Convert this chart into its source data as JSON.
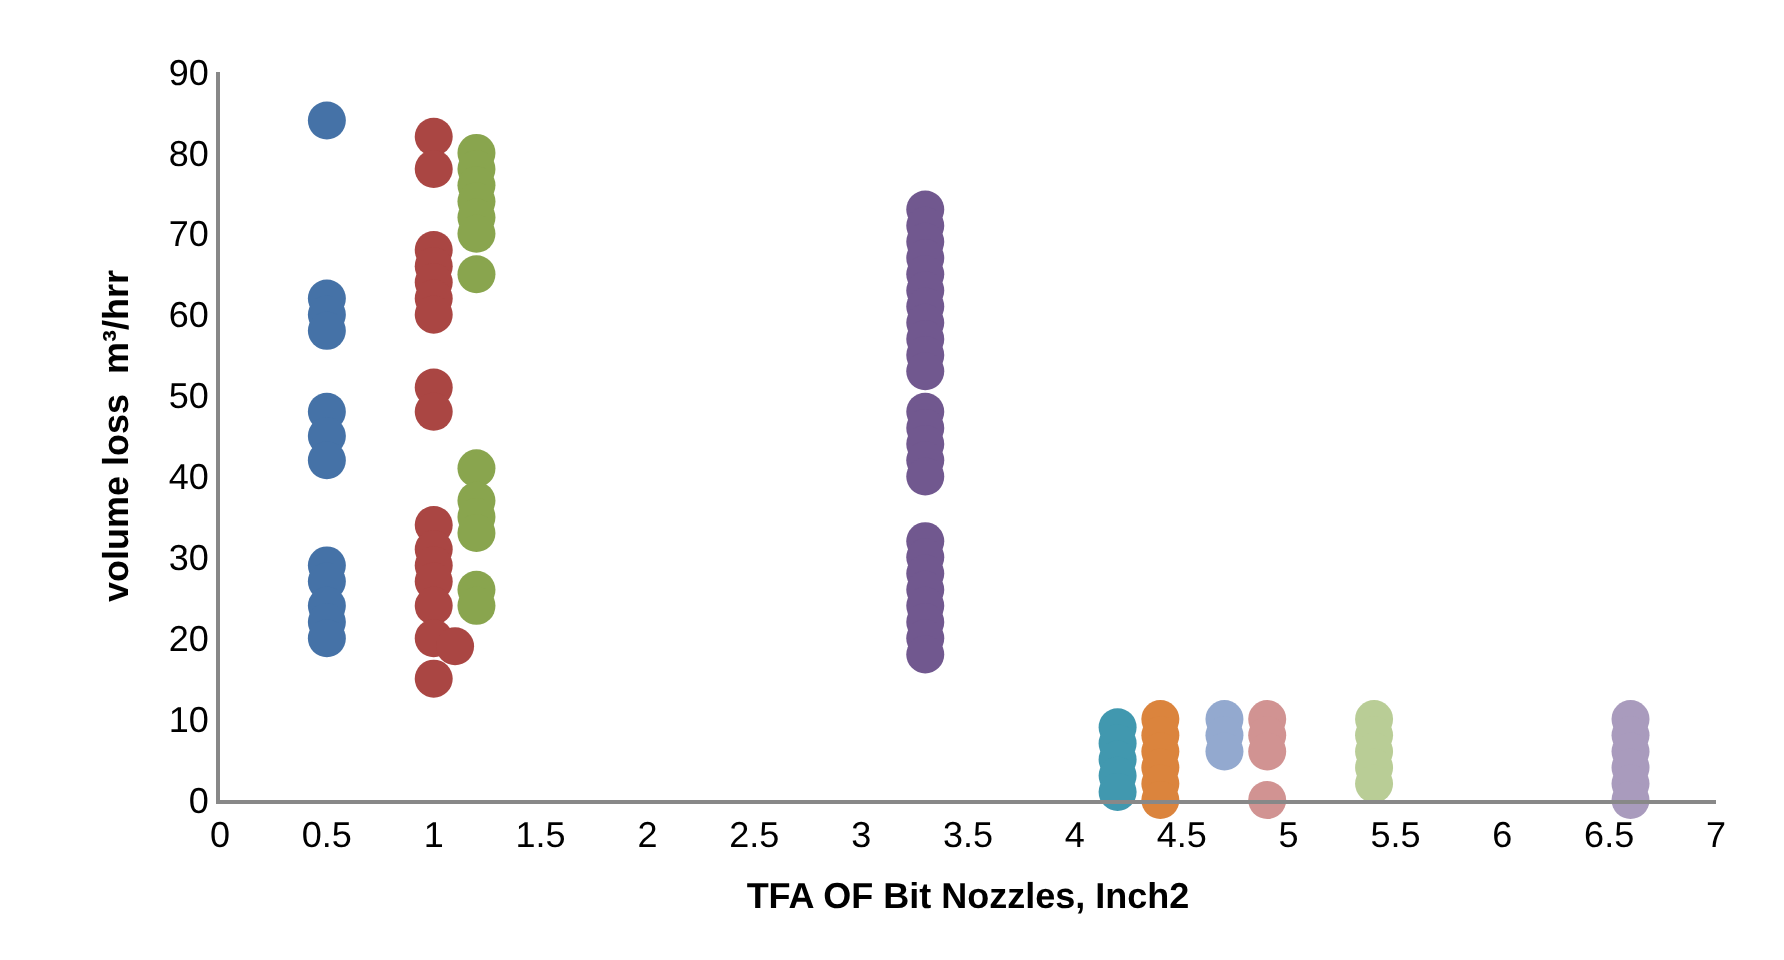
{
  "chart_data": {
    "type": "scatter",
    "xlabel": "TFA OF Bit Nozzles, Inch2",
    "ylabel": "volume loss  m³/hrr",
    "xlim": [
      0,
      7
    ],
    "xticks": [
      0,
      0.5,
      1,
      1.5,
      2,
      2.5,
      3,
      3.5,
      4,
      4.5,
      5,
      5.5,
      6,
      6.5,
      7
    ],
    "ylim": [
      0,
      90
    ],
    "yticks": [
      0,
      10,
      20,
      30,
      40,
      50,
      60,
      70,
      80,
      90
    ],
    "marker": "circle",
    "series": [
      {
        "color": "#4572a7",
        "x": [
          0.5,
          0.5,
          0.5,
          0.5,
          0.5,
          0.5,
          0.5,
          0.5,
          0.5,
          0.5,
          0.5,
          0.5
        ],
        "values": [
          84,
          62,
          60,
          58,
          48,
          45,
          42,
          29,
          27,
          24,
          22,
          20
        ]
      },
      {
        "color": "#aa4643",
        "x": [
          1,
          1,
          1,
          1,
          1,
          1,
          1,
          1,
          1,
          1,
          1,
          1,
          1,
          1,
          1,
          1,
          1.1
        ],
        "values": [
          82,
          78,
          68,
          66,
          64,
          62,
          60,
          51,
          48,
          34,
          31,
          29,
          27,
          24,
          20,
          15,
          19
        ]
      },
      {
        "color": "#89a54e",
        "x": [
          1.2,
          1.2,
          1.2,
          1.2,
          1.2,
          1.2,
          1.2,
          1.2,
          1.2,
          1.2,
          1.2,
          1.2,
          1.2
        ],
        "values": [
          80,
          78,
          76,
          74,
          72,
          70,
          65,
          41,
          37,
          35,
          33,
          26,
          24
        ]
      },
      {
        "color": "#71588f",
        "x": [
          3.3,
          3.3,
          3.3,
          3.3,
          3.3,
          3.3,
          3.3,
          3.3,
          3.3,
          3.3,
          3.3,
          3.3,
          3.3,
          3.3,
          3.3,
          3.3,
          3.3,
          3.3,
          3.3,
          3.3,
          3.3,
          3.3,
          3.3,
          3.3
        ],
        "values": [
          73,
          71,
          69,
          67,
          65,
          63,
          61,
          59,
          57,
          55,
          53,
          48,
          46,
          44,
          42,
          40,
          32,
          30,
          28,
          26,
          24,
          22,
          20,
          18
        ]
      },
      {
        "color": "#4198af",
        "x": [
          4.2,
          4.2,
          4.2,
          4.2,
          4.2
        ],
        "values": [
          9,
          7,
          5,
          3,
          1
        ]
      },
      {
        "color": "#db843d",
        "x": [
          4.4,
          4.4,
          4.4,
          4.4,
          4.4,
          4.4
        ],
        "values": [
          10,
          8,
          6,
          4,
          2,
          0
        ]
      },
      {
        "color": "#93a9cf",
        "x": [
          4.7,
          4.7,
          4.7
        ],
        "values": [
          10,
          8,
          6
        ]
      },
      {
        "color": "#d19392",
        "x": [
          4.9,
          4.9,
          4.9,
          4.9
        ],
        "values": [
          10,
          8,
          6,
          0
        ]
      },
      {
        "color": "#b9cd96",
        "x": [
          5.4,
          5.4,
          5.4,
          5.4,
          5.4
        ],
        "values": [
          10,
          8,
          6,
          4,
          2
        ]
      },
      {
        "color": "#a99bbd",
        "x": [
          6.6,
          6.6,
          6.6,
          6.6,
          6.6,
          6.6
        ],
        "values": [
          10,
          8,
          6,
          4,
          2,
          0
        ]
      }
    ]
  }
}
